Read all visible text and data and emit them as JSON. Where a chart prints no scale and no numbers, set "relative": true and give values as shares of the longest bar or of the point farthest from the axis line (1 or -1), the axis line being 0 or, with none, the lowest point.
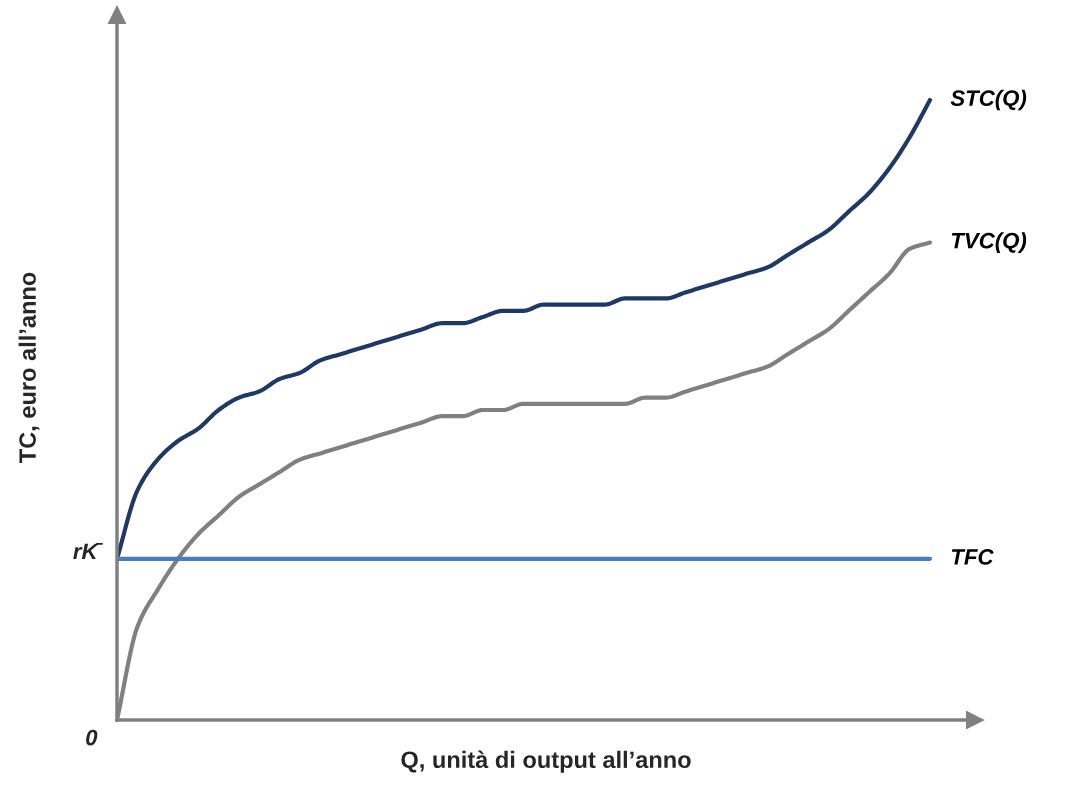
{
  "chart_data": {
    "type": "line",
    "relative": true,
    "xlabel": "Q, unità di output all’anno",
    "ylabel": "TC, euro all’anno",
    "categories": [
      null,
      null,
      null,
      null,
      null,
      null,
      null,
      null,
      null,
      null,
      null,
      null,
      null,
      null,
      null,
      null,
      null,
      null,
      null,
      null,
      null,
      null,
      null,
      null,
      null,
      null,
      null,
      null,
      null,
      null,
      null,
      null,
      null,
      null,
      null,
      null,
      null,
      null,
      null,
      null,
      null
    ],
    "series": [
      {
        "name": "STC(Q)",
        "color": "#1f3864",
        "values": [
          0.26,
          0.37,
          0.42,
          0.45,
          0.47,
          0.5,
          0.52,
          0.53,
          0.55,
          0.56,
          0.58,
          0.59,
          0.6,
          0.61,
          0.62,
          0.63,
          0.64,
          0.64,
          0.65,
          0.66,
          0.66,
          0.67,
          0.67,
          0.67,
          0.67,
          0.68,
          0.68,
          0.68,
          0.69,
          0.7,
          0.71,
          0.72,
          0.73,
          0.75,
          0.77,
          0.79,
          0.82,
          0.85,
          0.89,
          0.94,
          1
        ]
      },
      {
        "name": "TVC(Q)",
        "color": "#808080",
        "values": [
          0,
          0.15,
          0.21,
          0.26,
          0.3,
          0.33,
          0.36,
          0.38,
          0.4,
          0.42,
          0.43,
          0.44,
          0.45,
          0.46,
          0.47,
          0.48,
          0.49,
          0.49,
          0.5,
          0.5,
          0.51,
          0.51,
          0.51,
          0.51,
          0.51,
          0.51,
          0.52,
          0.52,
          0.53,
          0.54,
          0.55,
          0.56,
          0.57,
          0.59,
          0.61,
          0.63,
          0.66,
          0.69,
          0.72,
          0.76,
          0.77
        ]
      },
      {
        "name": "TFC",
        "color": "#4a7ebb",
        "values": [
          0.26,
          0.26,
          0.26,
          0.26,
          0.26,
          0.26,
          0.26,
          0.26,
          0.26,
          0.26,
          0.26,
          0.26,
          0.26,
          0.26,
          0.26,
          0.26,
          0.26,
          0.26,
          0.26,
          0.26,
          0.26,
          0.26,
          0.26,
          0.26,
          0.26,
          0.26,
          0.26,
          0.26,
          0.26,
          0.26,
          0.26,
          0.26,
          0.26,
          0.26,
          0.26,
          0.26,
          0.26,
          0.26,
          0.26,
          0.26,
          0.26
        ]
      }
    ],
    "annotations": [
      "rK̄",
      "0"
    ],
    "legend": false,
    "marker": "none",
    "line_style": "solid"
  }
}
